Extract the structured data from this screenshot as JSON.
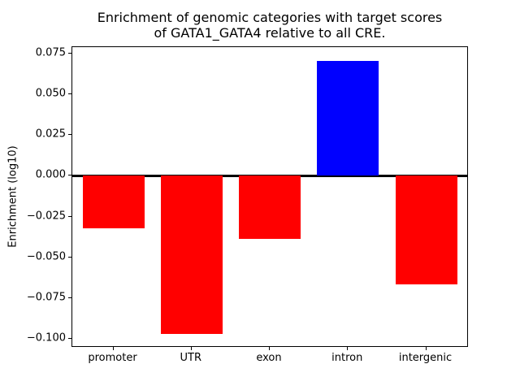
{
  "figure": {
    "title": "Enrichment of genomic categories with target scores\nof GATA1_GATA4 relative to all CRE.",
    "ylabel": "Enrichment (log10)"
  },
  "chart_data": {
    "type": "bar",
    "title": "Enrichment of genomic categories with target scores of GATA1_GATA4 relative to all CRE.",
    "xlabel": "",
    "ylabel": "Enrichment (log10)",
    "categories": [
      "promoter",
      "UTR",
      "exon",
      "intron",
      "intergenic"
    ],
    "values": [
      -0.032,
      -0.097,
      -0.0385,
      0.0705,
      -0.0665
    ],
    "bar_colors": [
      "#ff0000",
      "#ff0000",
      "#ff0000",
      "#0000ff",
      "#ff0000"
    ],
    "positive_color": "#0000ff",
    "negative_color": "#ff0000",
    "ylim": [
      -0.1054,
      0.0789
    ],
    "yticks": [
      {
        "value": 0.075,
        "label": "0.075"
      },
      {
        "value": 0.05,
        "label": "0.050"
      },
      {
        "value": 0.025,
        "label": "0.025"
      },
      {
        "value": 0.0,
        "label": "0.000"
      },
      {
        "value": -0.025,
        "label": "−0.025"
      },
      {
        "value": -0.05,
        "label": "−0.050"
      },
      {
        "value": -0.075,
        "label": "−0.075"
      },
      {
        "value": -0.1,
        "label": "−0.100"
      }
    ],
    "grid": false,
    "legend": null,
    "zero_line": true,
    "background": "#ffffff"
  }
}
